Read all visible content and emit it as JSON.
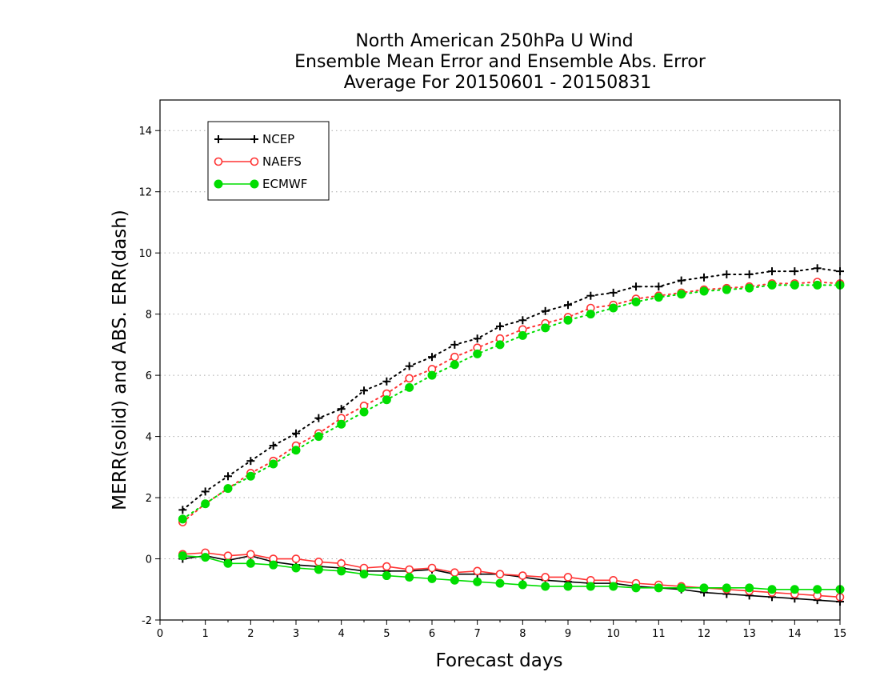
{
  "chart_data": {
    "type": "line",
    "title_lines": [
      "North American 250hPa U Wind",
      "Ensemble Mean Error and Ensemble Abs. Error",
      "Average For 20150601 - 20150831"
    ],
    "xlabel": "Forecast days",
    "ylabel": "MERR(solid) and ABS. ERR(dash)",
    "xlim": [
      0,
      15
    ],
    "ylim": [
      -2,
      15
    ],
    "xticks": [
      "0",
      "1",
      "2",
      "3",
      "4",
      "5",
      "6",
      "7",
      "8",
      "9",
      "10",
      "11",
      "12",
      "13",
      "14",
      "15"
    ],
    "yticks": [
      "-2",
      "0",
      "2",
      "4",
      "6",
      "8",
      "10",
      "12",
      "14"
    ],
    "grid": "horizontal dotted",
    "legend_position": "top-left",
    "x": [
      0.5,
      1,
      1.5,
      2,
      2.5,
      3,
      3.5,
      4,
      4.5,
      5,
      5.5,
      6,
      6.5,
      7,
      7.5,
      8,
      8.5,
      9,
      9.5,
      10,
      10.5,
      11,
      11.5,
      12,
      12.5,
      13,
      13.5,
      14,
      14.5,
      15
    ],
    "series": [
      {
        "name": "NCEP",
        "color": "#000000",
        "marker": "plus",
        "abs_err": [
          1.6,
          2.2,
          2.7,
          3.2,
          3.7,
          4.1,
          4.6,
          4.9,
          5.5,
          5.8,
          6.3,
          6.6,
          7.0,
          7.2,
          7.6,
          7.8,
          8.1,
          8.3,
          8.6,
          8.7,
          8.9,
          8.9,
          9.1,
          9.2,
          9.3,
          9.3,
          9.4,
          9.4,
          9.5,
          9.4
        ],
        "mean_err": [
          0.0,
          0.1,
          -0.05,
          0.1,
          -0.1,
          -0.2,
          -0.25,
          -0.3,
          -0.4,
          -0.4,
          -0.4,
          -0.35,
          -0.5,
          -0.5,
          -0.5,
          -0.6,
          -0.7,
          -0.75,
          -0.8,
          -0.8,
          -0.9,
          -0.95,
          -1.0,
          -1.1,
          -1.15,
          -1.2,
          -1.25,
          -1.3,
          -1.35,
          -1.4
        ]
      },
      {
        "name": "NAEFS",
        "color": "#ff3333",
        "marker": "open-circle",
        "abs_err": [
          1.2,
          1.8,
          2.3,
          2.8,
          3.2,
          3.7,
          4.1,
          4.6,
          5.0,
          5.4,
          5.9,
          6.2,
          6.6,
          6.9,
          7.2,
          7.5,
          7.7,
          7.9,
          8.2,
          8.3,
          8.5,
          8.6,
          8.7,
          8.8,
          8.85,
          8.9,
          9.0,
          9.0,
          9.05,
          9.0
        ],
        "mean_err": [
          0.15,
          0.2,
          0.1,
          0.15,
          0.0,
          0.0,
          -0.1,
          -0.15,
          -0.3,
          -0.25,
          -0.35,
          -0.3,
          -0.45,
          -0.4,
          -0.5,
          -0.55,
          -0.6,
          -0.6,
          -0.7,
          -0.7,
          -0.8,
          -0.85,
          -0.9,
          -0.95,
          -1.0,
          -1.05,
          -1.1,
          -1.15,
          -1.2,
          -1.25
        ]
      },
      {
        "name": "ECMWF",
        "color": "#00dd00",
        "marker": "filled-circle",
        "abs_err": [
          1.3,
          1.8,
          2.3,
          2.7,
          3.1,
          3.55,
          4.0,
          4.4,
          4.8,
          5.2,
          5.6,
          6.0,
          6.35,
          6.7,
          7.0,
          7.3,
          7.55,
          7.8,
          8.0,
          8.2,
          8.4,
          8.55,
          8.65,
          8.75,
          8.8,
          8.85,
          8.95,
          8.95,
          8.95,
          8.95
        ],
        "mean_err": [
          0.1,
          0.05,
          -0.15,
          -0.15,
          -0.2,
          -0.3,
          -0.35,
          -0.4,
          -0.5,
          -0.55,
          -0.6,
          -0.65,
          -0.7,
          -0.75,
          -0.8,
          -0.85,
          -0.9,
          -0.9,
          -0.9,
          -0.9,
          -0.95,
          -0.95,
          -0.95,
          -0.95,
          -0.95,
          -0.95,
          -1.0,
          -1.0,
          -1.0,
          -1.0
        ]
      }
    ]
  }
}
